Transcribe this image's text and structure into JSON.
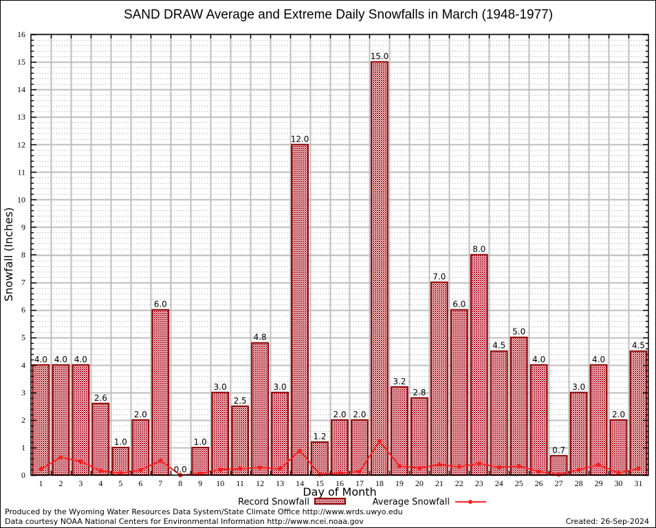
{
  "chart_data": {
    "type": "bar",
    "title": "SAND DRAW Average and Extreme Daily Snowfalls in March (1948-1977)",
    "xlabel": "Day of Month",
    "ylabel": "Snowfall (Inches)",
    "ylim": [
      0,
      16
    ],
    "yticks": [
      0,
      1,
      2,
      3,
      4,
      5,
      6,
      7,
      8,
      9,
      10,
      11,
      12,
      13,
      14,
      15,
      16
    ],
    "grid": true,
    "legend_position": "bottom-center",
    "categories": [
      "1",
      "2",
      "3",
      "4",
      "5",
      "6",
      "7",
      "8",
      "9",
      "10",
      "11",
      "12",
      "13",
      "14",
      "15",
      "16",
      "17",
      "18",
      "19",
      "20",
      "21",
      "22",
      "23",
      "24",
      "25",
      "26",
      "27",
      "28",
      "29",
      "30",
      "31"
    ],
    "series": [
      {
        "name": "Record Snowfall",
        "kind": "bar",
        "color": "#8b0000",
        "fill": "#c0303a",
        "values": [
          4.0,
          4.0,
          4.0,
          2.6,
          1.0,
          2.0,
          6.0,
          0.0,
          1.0,
          3.0,
          2.5,
          4.8,
          3.0,
          12.0,
          1.2,
          2.0,
          2.0,
          15.0,
          3.2,
          2.8,
          7.0,
          6.0,
          8.0,
          4.5,
          5.0,
          4.0,
          0.7,
          3.0,
          4.0,
          2.0,
          4.5
        ],
        "labels": [
          "4.0",
          "4.0",
          "4.0",
          "2.6",
          "1.0",
          "2.0",
          "6.0",
          "0.0",
          "1.0",
          "3.0",
          "2.5",
          "4.8",
          "3.0",
          "12.0",
          "1.2",
          "2.0",
          "2.0",
          "15.0",
          "3.2",
          "2.8",
          "7.0",
          "6.0",
          "8.0",
          "4.5",
          "5.0",
          "4.0",
          "0.7",
          "3.0",
          "4.0",
          "2.0",
          "4.5"
        ]
      },
      {
        "name": "Average Snowfall",
        "kind": "line",
        "color": "#ff2020",
        "values": [
          0.22,
          0.65,
          0.5,
          0.15,
          0.07,
          0.18,
          0.52,
          0.0,
          0.05,
          0.2,
          0.23,
          0.27,
          0.23,
          0.88,
          0.03,
          0.07,
          0.13,
          1.23,
          0.33,
          0.25,
          0.38,
          0.3,
          0.42,
          0.28,
          0.32,
          0.13,
          0.02,
          0.2,
          0.37,
          0.08,
          0.23
        ]
      }
    ]
  },
  "footer": {
    "line1": "Produced by the Wyoming Water Resources Data System/State Climate Office http://www.wrds.uwyo.edu",
    "line2": "Data courtesy NOAA National Centers for Environmental Information http://www.ncei.noaa.gov",
    "created": "Created: 26-Sep-2024"
  }
}
